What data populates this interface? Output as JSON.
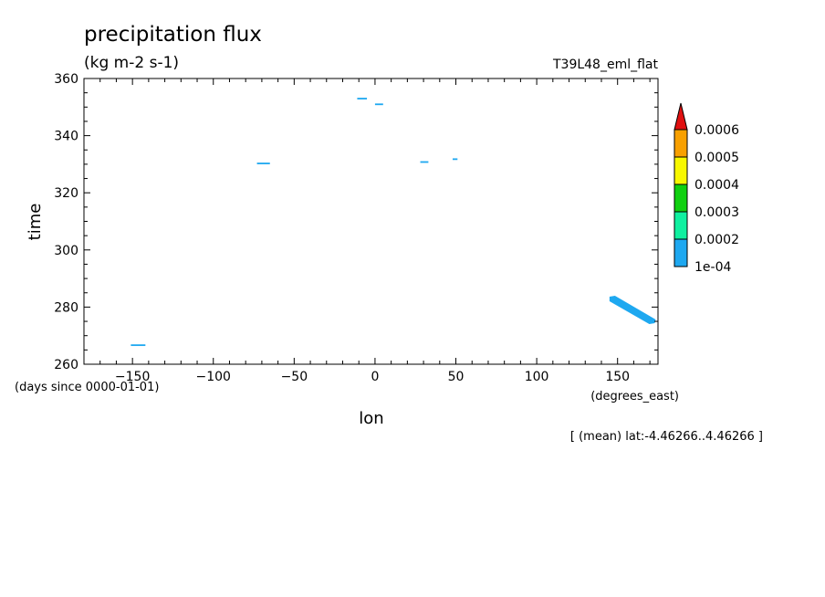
{
  "chart_data": {
    "type": "heatmap",
    "title": "precipitation flux",
    "units": "(kg m-2 s-1)",
    "experiment": "T39L48_eml_flat",
    "xlabel": "lon",
    "xunits": "(degrees_east)",
    "ylabel": "time",
    "yunits": "(days since 0000-01-01)",
    "annotation": "[ (mean) lat:-4.46266..4.46266 ]",
    "xlim": [
      -180,
      175
    ],
    "ylim": [
      260,
      360
    ],
    "xticks": [
      -150,
      -100,
      -50,
      0,
      50,
      100,
      150
    ],
    "yticks": [
      260,
      280,
      300,
      320,
      340,
      360
    ],
    "colorbar": {
      "labels": [
        "1e-04",
        "0.0002",
        "0.0003",
        "0.0004",
        "0.0005",
        "0.0006"
      ],
      "colors": [
        "#1ea8f0",
        "#10f0a0",
        "#10d010",
        "#f8f800",
        "#f8a000",
        "#e01010"
      ]
    },
    "features": [
      {
        "lon_start": -151,
        "lon_end": -142,
        "time": 266.7,
        "level": "1e-04"
      },
      {
        "lon_start": -73,
        "lon_end": -65,
        "time": 330.3,
        "level": "1e-04"
      },
      {
        "lon_start": -11,
        "lon_end": -5,
        "time": 353.0,
        "level": "1e-04"
      },
      {
        "lon_start": 0,
        "lon_end": 5,
        "time": 351.0,
        "level": "1e-04"
      },
      {
        "lon_start": 28,
        "lon_end": 33,
        "time": 330.8,
        "level": "1e-04"
      },
      {
        "lon_start": 48,
        "lon_end": 51,
        "time": 331.8,
        "level": "1e-04"
      },
      {
        "lon_start": 145,
        "lon_end": 173,
        "time_start": 283,
        "time_end": 275,
        "level": "1e-04"
      }
    ]
  }
}
